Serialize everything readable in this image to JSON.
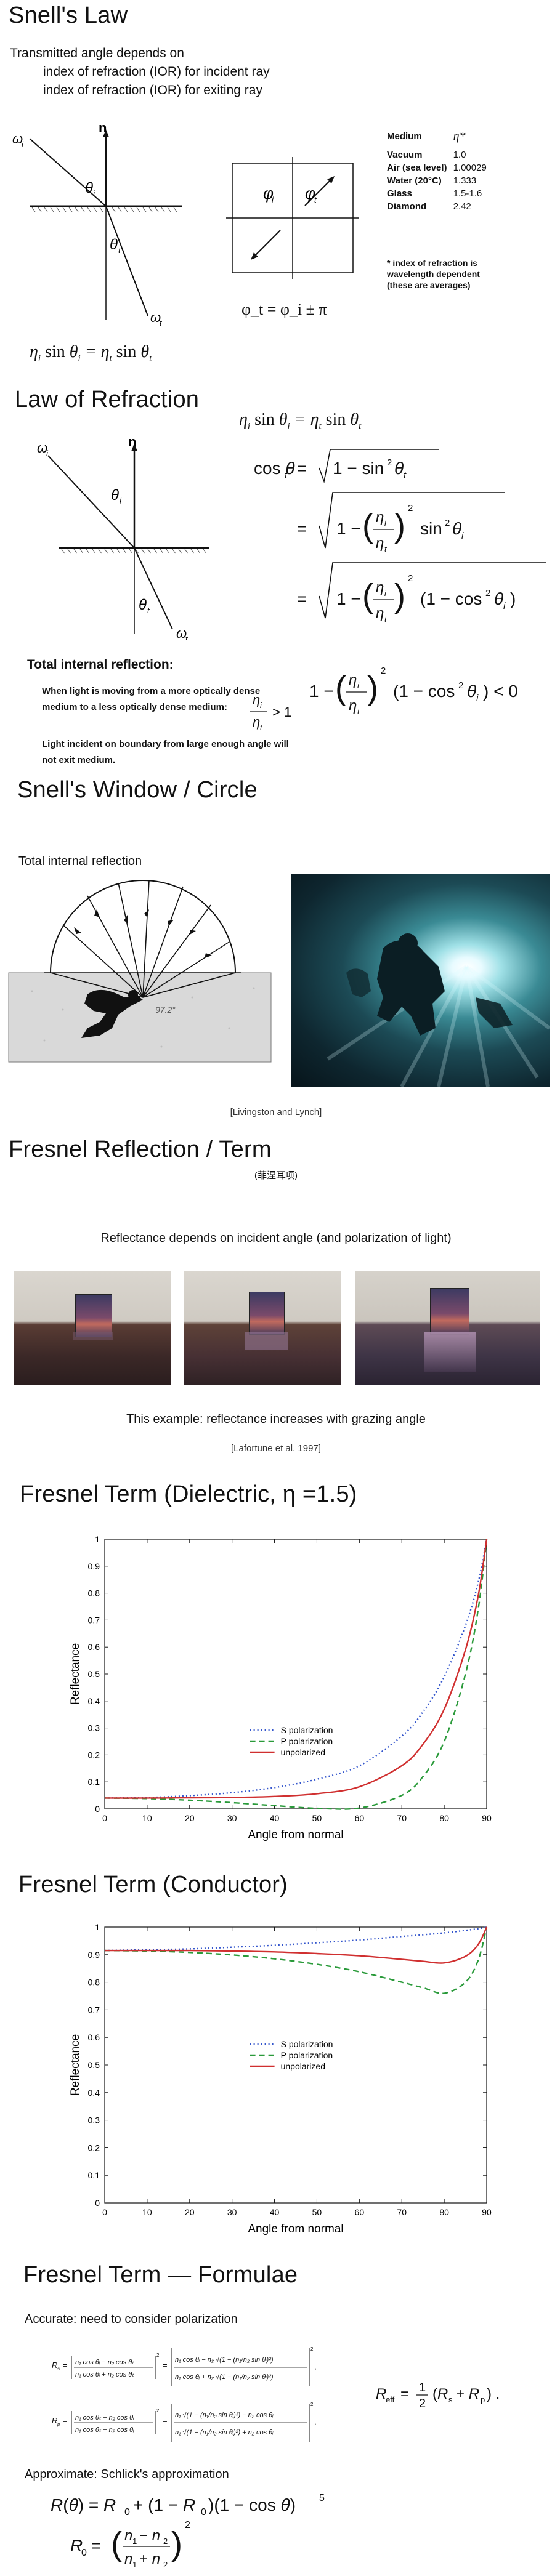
{
  "s1": {
    "title": "Snell's Law",
    "line1": "Transmitted angle depends on",
    "line2": "index of refraction (IOR) for incident ray",
    "line3": "index of refraction (IOR) for exiting ray",
    "eq": "η_i sin θ_i = η_t sin θ_t",
    "phi_eq": "φ_t = φ_i ± π",
    "table_head_medium": "Medium",
    "table_head_eta": "η*",
    "table": [
      {
        "medium": "Vacuum",
        "eta": "1.0"
      },
      {
        "medium": "Air (sea level)",
        "eta": "1.00029"
      },
      {
        "medium": "Water (20°C)",
        "eta": "1.333"
      },
      {
        "medium": "Glass",
        "eta": "1.5-1.6"
      },
      {
        "medium": "Diamond",
        "eta": "2.42"
      }
    ],
    "note1": "* index of refraction is",
    "note2": "wavelength dependent",
    "note3": "(these are averages)"
  },
  "s2": {
    "title": "Law of Refraction",
    "eq1": "η_i sin θ_i = η_t sin θ_t",
    "tir_title": "Total internal reflection:",
    "tir_text1": "When light is moving from a more optically dense",
    "tir_text2": "medium to a less optically dense medium:",
    "tir_text3": "Light incident on boundary from large enough angle will",
    "tir_text4": "not exit medium."
  },
  "s3": {
    "title": "Snell's Window / Circle",
    "subtitle": "Total internal reflection",
    "caption": "[Livingston and Lynch]",
    "angle_label": "97.2°"
  },
  "s4": {
    "title": "Fresnel Reflection / Term",
    "subtitle": "(菲涅耳项)",
    "line": "Reflectance depends on incident angle (and polarization of light)",
    "example": "This example: reflectance increases with grazing angle",
    "caption": "[Lafortune et al. 1997]"
  },
  "s5": {
    "title": "Fresnel Term (Dielectric, η =1.5)"
  },
  "s6": {
    "title": "Fresnel Term (Conductor)"
  },
  "s7": {
    "title": "Fresnel Term — Formulae",
    "accurate": "Accurate: need to consider polarization",
    "approx": "Approximate: Schlick's approximation"
  },
  "chart_data": [
    {
      "type": "line",
      "xlabel": "Angle from normal",
      "ylabel": "Reflectance",
      "xlim": [
        0,
        90
      ],
      "ylim": [
        0,
        1
      ],
      "xticks": [
        0,
        10,
        20,
        30,
        40,
        50,
        60,
        70,
        80,
        90
      ],
      "yticks": [
        0,
        0.1,
        0.2,
        0.3,
        0.4,
        0.5,
        0.6,
        0.7,
        0.8,
        0.9,
        1
      ],
      "legend_position": "center",
      "x": [
        0,
        10,
        20,
        30,
        40,
        50,
        60,
        70,
        75,
        80,
        85,
        88,
        90
      ],
      "series": [
        {
          "name": "S polarization",
          "style": "dotted",
          "color": "#3355cc",
          "values": [
            0.04,
            0.042,
            0.049,
            0.06,
            0.079,
            0.11,
            0.16,
            0.27,
            0.36,
            0.49,
            0.68,
            0.84,
            1.0
          ]
        },
        {
          "name": "P polarization",
          "style": "dashed",
          "color": "#2a9a3a",
          "values": [
            0.04,
            0.038,
            0.032,
            0.023,
            0.012,
            0.002,
            0.003,
            0.05,
            0.12,
            0.25,
            0.5,
            0.74,
            1.0
          ]
        },
        {
          "name": "unpolarized",
          "style": "solid",
          "color": "#d03030",
          "values": [
            0.04,
            0.04,
            0.041,
            0.042,
            0.046,
            0.056,
            0.082,
            0.16,
            0.24,
            0.37,
            0.59,
            0.79,
            1.0
          ]
        }
      ]
    },
    {
      "type": "line",
      "xlabel": "Angle from normal",
      "ylabel": "Reflectance",
      "xlim": [
        0,
        90
      ],
      "ylim": [
        0,
        1
      ],
      "xticks": [
        0,
        10,
        20,
        30,
        40,
        50,
        60,
        70,
        80,
        90
      ],
      "yticks": [
        0,
        0.1,
        0.2,
        0.3,
        0.4,
        0.5,
        0.6,
        0.7,
        0.8,
        0.9,
        1
      ],
      "legend_position": "center",
      "x": [
        0,
        10,
        20,
        30,
        40,
        50,
        60,
        70,
        75,
        80,
        85,
        88,
        90
      ],
      "series": [
        {
          "name": "S polarization",
          "style": "dotted",
          "color": "#3355cc",
          "values": [
            0.915,
            0.918,
            0.921,
            0.927,
            0.934,
            0.943,
            0.953,
            0.966,
            0.972,
            0.979,
            0.988,
            0.994,
            1.0
          ]
        },
        {
          "name": "P polarization",
          "style": "dashed",
          "color": "#2a9a3a",
          "values": [
            0.915,
            0.913,
            0.908,
            0.899,
            0.885,
            0.865,
            0.838,
            0.8,
            0.78,
            0.76,
            0.8,
            0.88,
            1.0
          ]
        },
        {
          "name": "unpolarized",
          "style": "solid",
          "color": "#d03030",
          "values": [
            0.915,
            0.915,
            0.915,
            0.913,
            0.91,
            0.904,
            0.896,
            0.883,
            0.876,
            0.87,
            0.894,
            0.937,
            1.0
          ]
        }
      ]
    }
  ]
}
